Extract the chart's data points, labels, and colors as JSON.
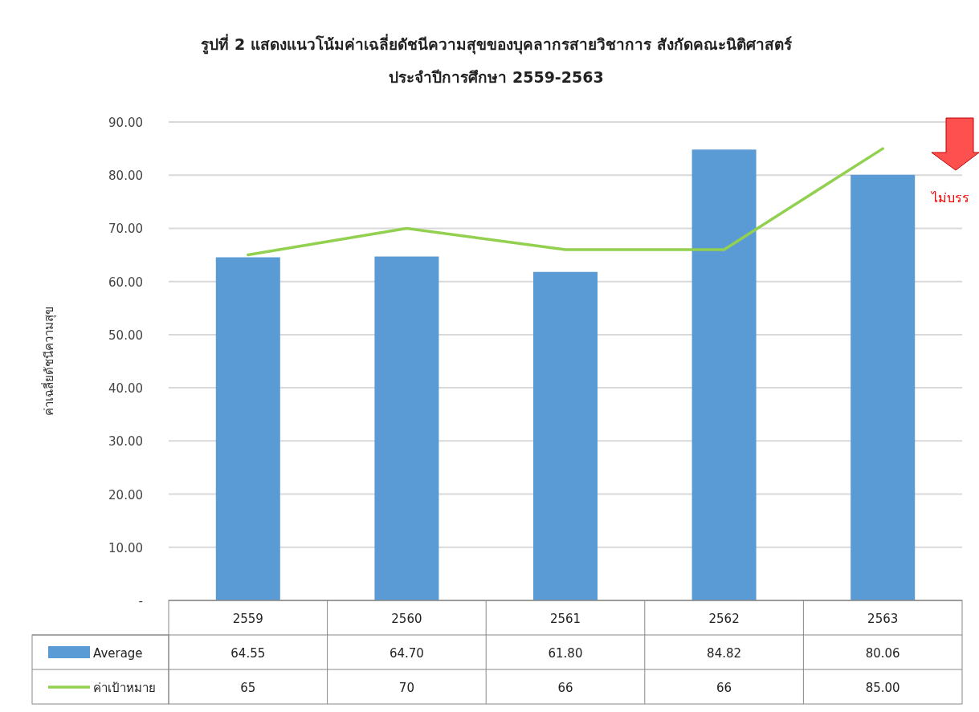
{
  "chart_data": {
    "type": "bar",
    "title": "รูปที่ 2 แสดงแนวโน้มค่าเฉลี่ยดัชนีความสุขของบุคลากรสายวิชาการ สังกัดคณะนิติศาสตร์",
    "subtitle": "ประจำปีการศึกษา 2559-2563",
    "ylabel": "ค่าเฉลี่ยดัชนีความสุข",
    "categories": [
      "2559",
      "2560",
      "2561",
      "2562",
      "2563"
    ],
    "series": [
      {
        "name": "Average",
        "color": "#5b9bd5",
        "values": [
          64.55,
          64.7,
          61.8,
          84.82,
          80.06
        ],
        "value_labels": [
          "64.55",
          "64.70",
          "61.80",
          "84.82",
          "80.06"
        ]
      },
      {
        "name": "ค่าเป้าหมาย",
        "type": "line",
        "color": "#92d050",
        "values": [
          65,
          70,
          66,
          66,
          85
        ],
        "value_labels": [
          "65",
          "70",
          "66",
          "66",
          "85.00"
        ]
      }
    ],
    "ylim": [
      0,
      90
    ],
    "yticks": [
      {
        "value": 0,
        "label": "-"
      },
      {
        "value": 10,
        "label": "10.00"
      },
      {
        "value": 20,
        "label": "20.00"
      },
      {
        "value": 30,
        "label": "30.00"
      },
      {
        "value": 40,
        "label": "40.00"
      },
      {
        "value": 50,
        "label": "50.00"
      },
      {
        "value": 60,
        "label": "60.00"
      },
      {
        "value": 70,
        "label": "70.00"
      },
      {
        "value": 80,
        "label": "80.00"
      },
      {
        "value": 90,
        "label": "90.00"
      }
    ],
    "grid": "y",
    "legend": "bottom",
    "annotations": [
      {
        "text": "ไม่บรร"
      }
    ]
  }
}
